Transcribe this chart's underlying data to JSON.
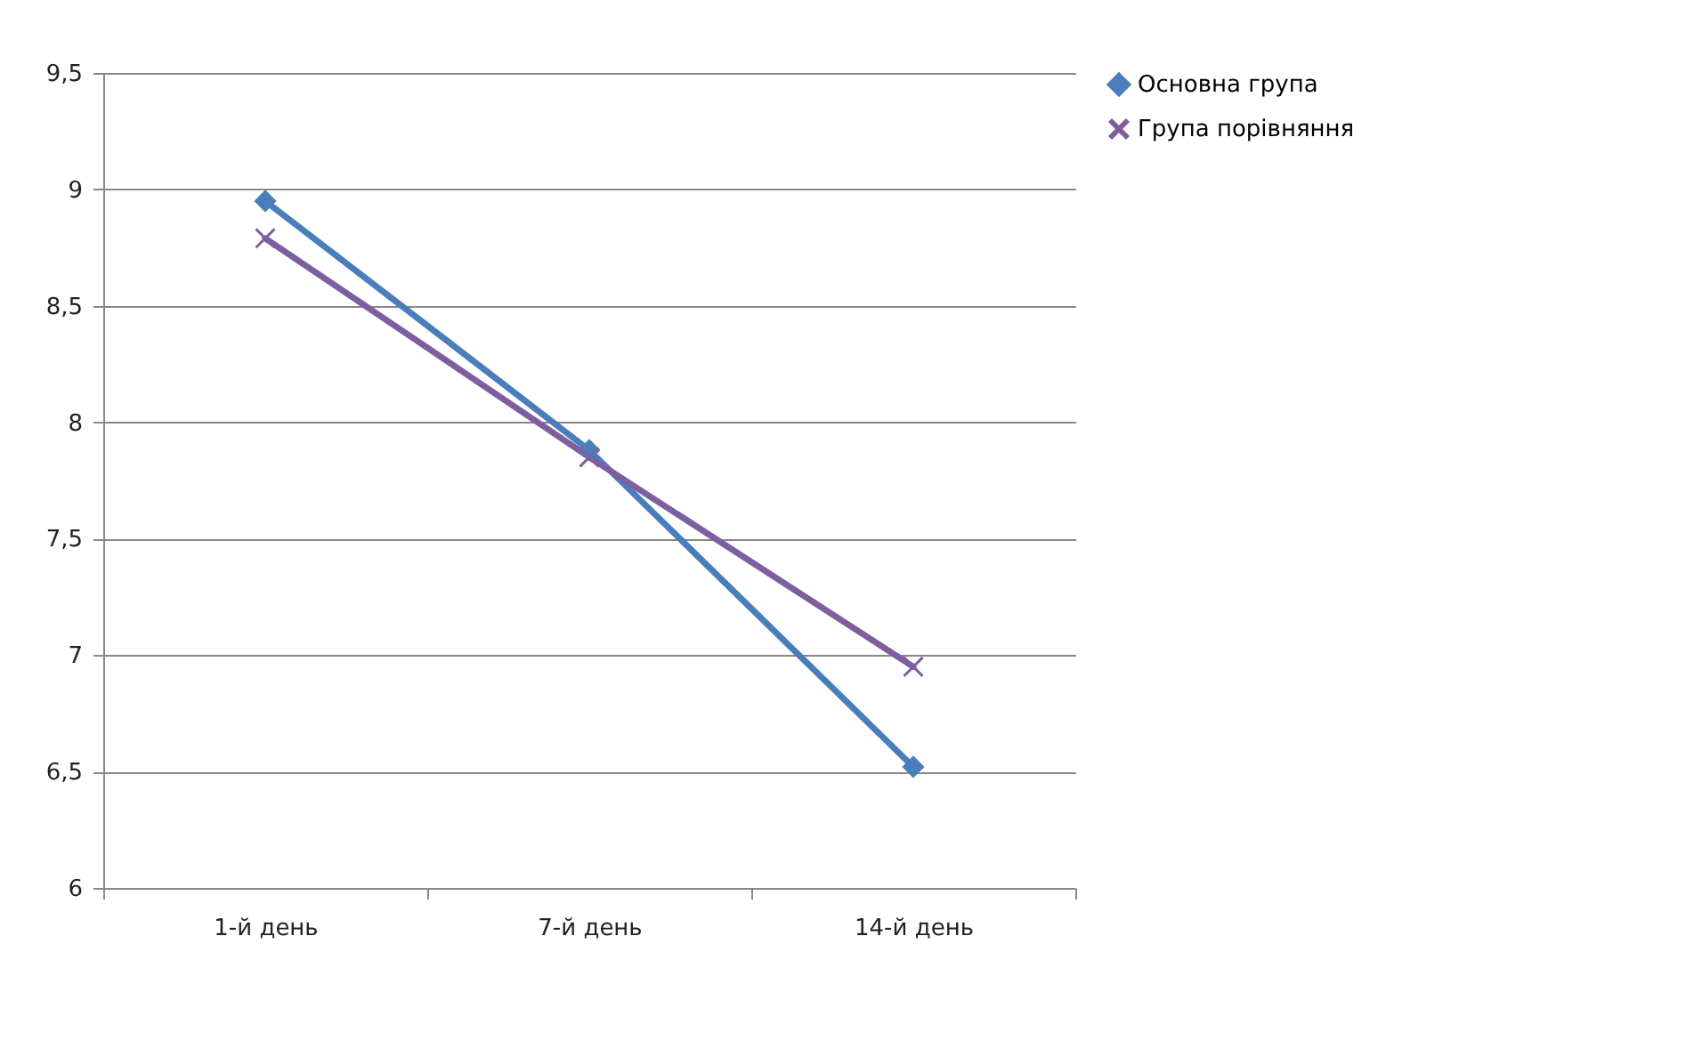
{
  "chart_data": {
    "type": "line",
    "categories": [
      "1-й день",
      "7-й день",
      "14-й день"
    ],
    "series": [
      {
        "name": "Основна група",
        "color": "#4a7ebb",
        "marker": "diamond",
        "values": [
          8.95,
          7.88,
          6.52
        ]
      },
      {
        "name": "Група порівняння",
        "color": "#7d5fa0",
        "marker": "cross",
        "values": [
          8.79,
          7.85,
          6.95
        ]
      }
    ],
    "ylim": [
      6,
      9.5
    ],
    "yticks": [
      6,
      {
        "value": 6.5,
        "label": "6,5"
      },
      7,
      {
        "value": 7.5,
        "label": "7,5"
      },
      8,
      {
        "value": 8.5,
        "label": "8,5"
      },
      9,
      {
        "value": 9.5,
        "label": "9,5"
      }
    ],
    "grid": "y",
    "legend": "right"
  }
}
